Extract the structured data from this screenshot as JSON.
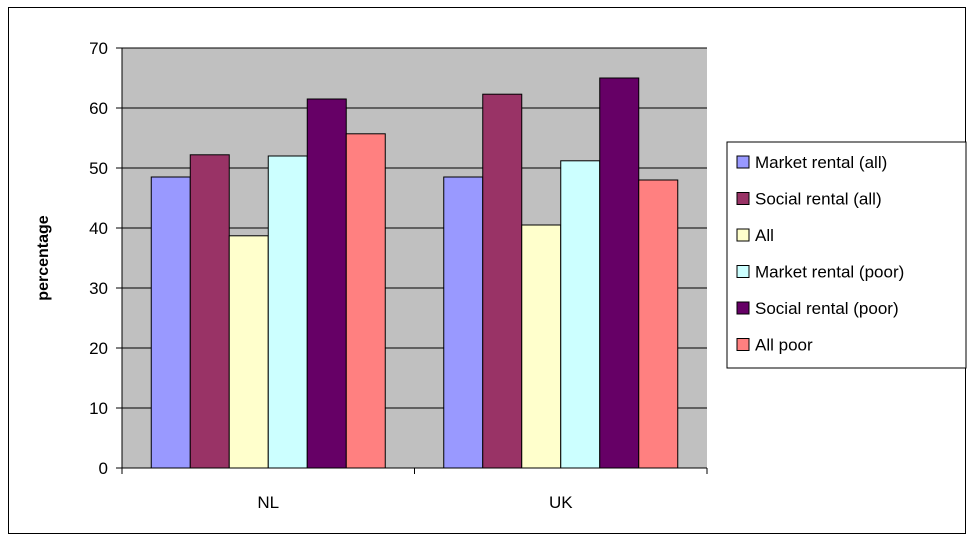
{
  "chart_data": {
    "type": "bar",
    "title": "",
    "xlabel": "",
    "ylabel": "percentage",
    "ylim": [
      0,
      70
    ],
    "yticks": [
      0,
      10,
      20,
      30,
      40,
      50,
      60,
      70
    ],
    "grid": true,
    "legend_position": "right",
    "plot_background": "#c0c0c0",
    "categories": [
      "NL",
      "UK"
    ],
    "series": [
      {
        "name": "Market rental (all)",
        "color": "#9999ff",
        "values": [
          48.5,
          48.5
        ]
      },
      {
        "name": "Social rental (all)",
        "color": "#993366",
        "values": [
          52.2,
          62.3
        ]
      },
      {
        "name": "All",
        "color": "#ffffcc",
        "values": [
          38.7,
          40.5
        ]
      },
      {
        "name": "Market rental (poor)",
        "color": "#ccffff",
        "values": [
          52.0,
          51.2
        ]
      },
      {
        "name": "Social rental (poor)",
        "color": "#660066",
        "values": [
          61.5,
          65.0
        ]
      },
      {
        "name": "All poor",
        "color": "#ff8080",
        "values": [
          55.7,
          48.0
        ]
      }
    ]
  }
}
